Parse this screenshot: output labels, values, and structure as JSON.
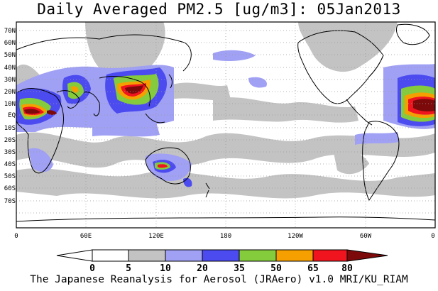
{
  "title": "Daily Averaged PM2.5 [ug/m3]: 05Jan2013",
  "footer": "The Japanese Reanalysis for Aerosol (JRAero) v1.0 MRI/KU_RIAM",
  "lat_labels": [
    "70N",
    "60N",
    "50N",
    "40N",
    "30N",
    "20N",
    "10N",
    "EQ",
    "10S",
    "20S",
    "30S",
    "40S",
    "50S",
    "60S",
    "70S"
  ],
  "lon_labels": [
    "0",
    "60E",
    "120E",
    "180",
    "120W",
    "60W",
    "0"
  ],
  "colorbar": {
    "thresholds": [
      "0",
      "5",
      "10",
      "20",
      "35",
      "50",
      "65",
      "80"
    ],
    "colors": [
      "#ffffff",
      "#ffffff",
      "#c3c3c3",
      "#a0a0f5",
      "#4b4bf0",
      "#84cc3c",
      "#f5a000",
      "#f0141e",
      "#7d0a0a"
    ]
  }
}
